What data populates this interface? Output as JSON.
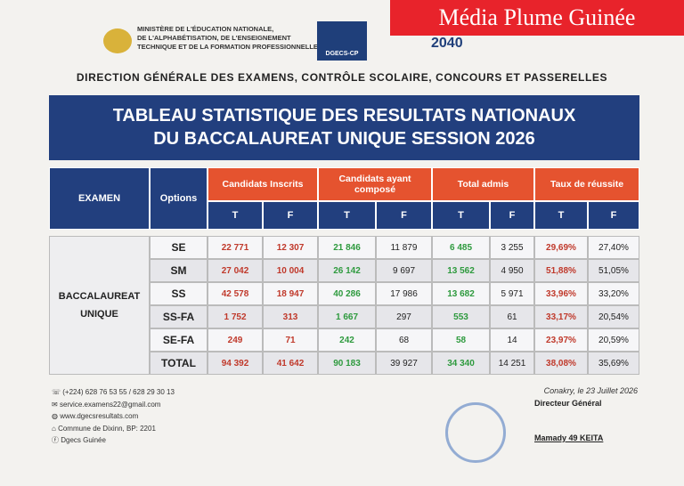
{
  "watermark": "Média Plume Guinée",
  "header": {
    "ministry": [
      "MINISTÈRE DE L'ÉDUCATION NATIONALE,",
      "DE L'ALPHABÉTISATION, DE L'ENSEIGNEMENT",
      "TECHNIQUE ET DE LA FORMATION PROFESSIONNELLE"
    ],
    "logo_text": "DGECS-CP",
    "vision": "2040",
    "direction": "DIRECTION GÉNÉRALE DES EXAMENS, CONTRÔLE SCOLAIRE, CONCOURS ET PASSERELLES"
  },
  "title": [
    "TABLEAU STATISTIQUE DES RESULTATS NATIONAUX",
    "DU BACCALAUREAT UNIQUE SESSION 2026"
  ],
  "table": {
    "exam_header": "EXAMEN",
    "options_header": "Options",
    "groups": [
      "Candidats  Inscrits",
      "Candidats ayant composé",
      "Total admis",
      "Taux de réussite"
    ],
    "subheaders": [
      "T",
      "F",
      "T",
      "F",
      "T",
      "F",
      "T",
      "F"
    ],
    "exam": "BACCALAUREAT UNIQUE",
    "rows": [
      {
        "option": "SE",
        "cells": [
          "22 771",
          "12 307",
          "21 846",
          "11 879",
          "6 485",
          "3 255",
          "29,69%",
          "27,40%"
        ]
      },
      {
        "option": "SM",
        "cells": [
          "27 042",
          "10 004",
          "26 142",
          "9 697",
          "13 562",
          "4 950",
          "51,88%",
          "51,05%"
        ]
      },
      {
        "option": "SS",
        "cells": [
          "42 578",
          "18 947",
          "40 286",
          "17 986",
          "13 682",
          "5 971",
          "33,96%",
          "33,20%"
        ]
      },
      {
        "option": "SS-FA",
        "cells": [
          "1 752",
          "313",
          "1 667",
          "297",
          "553",
          "61",
          "33,17%",
          "20,54%"
        ]
      },
      {
        "option": "SE-FA",
        "cells": [
          "249",
          "71",
          "242",
          "68",
          "58",
          "14",
          "23,97%",
          "20,59%"
        ]
      },
      {
        "option": "TOTAL",
        "cells": [
          "94 392",
          "41 642",
          "90 183",
          "39 927",
          "34 340",
          "14 251",
          "38,08%",
          "35,69%"
        ]
      }
    ]
  },
  "contacts": [
    "(+224) 628 76 53 55 / 628 29 30 13",
    "service.examens22@gmail.com",
    "www.dgecsresultats.com",
    "Commune de Dixinn, BP: 2201",
    "Dgecs Guinée"
  ],
  "signature": {
    "place_date": "Conakry, le 23 Juillet 2026",
    "role": "Directeur Général",
    "name": "Mamady 49  KEITA"
  }
}
